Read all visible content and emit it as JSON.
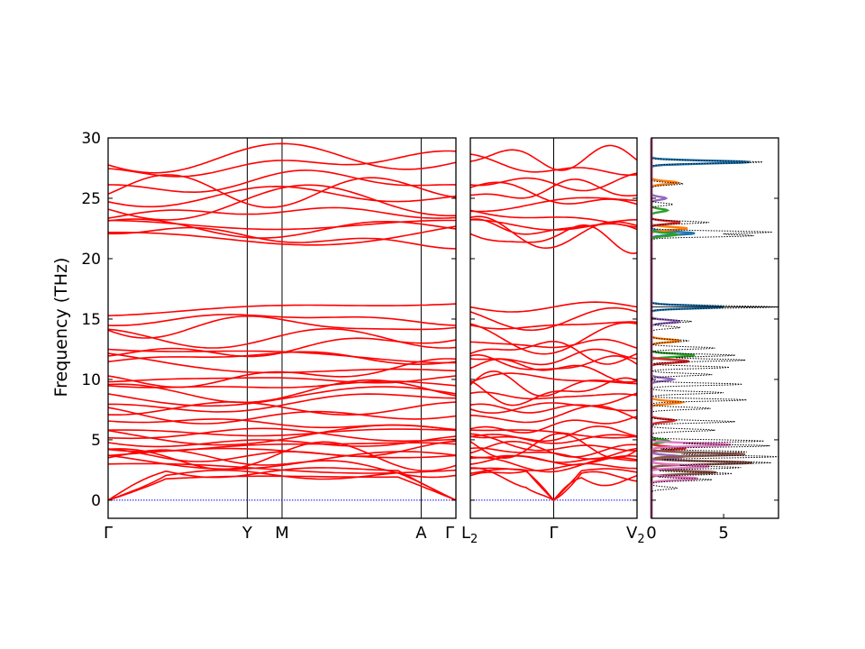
{
  "chart_data": {
    "type": "line",
    "ylabel": "Frequency (THz)",
    "ylim": [
      -1.5,
      30
    ],
    "yticks": [
      0,
      5,
      10,
      15,
      20,
      25,
      30
    ],
    "colors": {
      "bands": "#ff0000",
      "zero_line": "#0000ff",
      "total_dos": "#000000"
    },
    "panels": [
      {
        "id": "path1",
        "xticks": [
          {
            "label": "Γ",
            "pos": 0.0
          },
          {
            "label": "Y",
            "pos": 0.4
          },
          {
            "label": "M",
            "pos": 0.5
          },
          {
            "label": "A",
            "pos": 0.9
          },
          {
            "label": "Γ",
            "pos": 1.0
          }
        ]
      },
      {
        "id": "path2",
        "xticks": [
          {
            "label": "L",
            "sub": "2",
            "pos": 0.0
          },
          {
            "label": "Γ",
            "pos": 0.5
          },
          {
            "label": "V",
            "sub": "2",
            "pos": 1.0
          }
        ]
      }
    ],
    "band_reference_levels_thz": [
      0.0,
      1.8,
      2.1,
      2.4,
      2.7,
      3.0,
      3.3,
      3.6,
      3.9,
      4.2,
      4.5,
      4.8,
      5.1,
      5.4,
      5.8,
      6.3,
      7.0,
      7.6,
      8.2,
      8.6,
      9.0,
      9.5,
      10.0,
      10.6,
      11.2,
      11.8,
      12.3,
      12.9,
      13.4,
      14.5,
      15.0,
      16.0,
      21.8,
      22.2,
      22.5,
      22.8,
      23.5,
      24.6,
      25.2,
      25.6,
      26.3,
      27.8,
      28.3
    ],
    "dos_panel": {
      "xticks": [
        0,
        5
      ],
      "xlim": [
        0,
        8.8
      ],
      "projection_colors": [
        "#1f77b4",
        "#ff7f0e",
        "#2ca02c",
        "#d62728",
        "#9467bd",
        "#8c564b",
        "#e377c2"
      ],
      "total_peaks": [
        {
          "f": 28.0,
          "d": 7.7
        },
        {
          "f": 26.2,
          "d": 2.2
        },
        {
          "f": 24.5,
          "d": 1.5
        },
        {
          "f": 23.0,
          "d": 4.0
        },
        {
          "f": 22.2,
          "d": 8.3
        },
        {
          "f": 21.9,
          "d": 7.0
        },
        {
          "f": 16.0,
          "d": 8.8
        },
        {
          "f": 14.8,
          "d": 2.8
        },
        {
          "f": 14.3,
          "d": 2.0
        },
        {
          "f": 13.2,
          "d": 2.6
        },
        {
          "f": 12.6,
          "d": 4.4
        },
        {
          "f": 12.0,
          "d": 5.8
        },
        {
          "f": 11.6,
          "d": 6.5
        },
        {
          "f": 11.0,
          "d": 5.4
        },
        {
          "f": 10.4,
          "d": 4.2
        },
        {
          "f": 9.6,
          "d": 6.3
        },
        {
          "f": 8.9,
          "d": 5.0
        },
        {
          "f": 8.3,
          "d": 6.6
        },
        {
          "f": 7.6,
          "d": 4.1
        },
        {
          "f": 6.5,
          "d": 5.8
        },
        {
          "f": 5.8,
          "d": 4.4
        },
        {
          "f": 4.9,
          "d": 7.8
        },
        {
          "f": 4.5,
          "d": 8.2
        },
        {
          "f": 4.0,
          "d": 6.6
        },
        {
          "f": 3.6,
          "d": 8.8
        },
        {
          "f": 3.1,
          "d": 8.3
        },
        {
          "f": 2.7,
          "d": 6.2
        },
        {
          "f": 2.2,
          "d": 5.6
        },
        {
          "f": 1.7,
          "d": 4.2
        },
        {
          "f": 1.0,
          "d": 1.8
        }
      ],
      "projections": [
        [
          {
            "f": 28.0,
            "d": 6.8
          },
          {
            "f": 22.1,
            "d": 3.0
          },
          {
            "f": 16.0,
            "d": 5.0
          }
        ],
        [
          {
            "f": 26.3,
            "d": 1.8
          },
          {
            "f": 22.5,
            "d": 2.5
          },
          {
            "f": 13.2,
            "d": 2.0
          },
          {
            "f": 8.1,
            "d": 2.1
          }
        ],
        [
          {
            "f": 24.0,
            "d": 1.1
          },
          {
            "f": 22.0,
            "d": 1.8
          },
          {
            "f": 12.0,
            "d": 3.0
          },
          {
            "f": 4.9,
            "d": 1.2
          }
        ],
        [
          {
            "f": 23.0,
            "d": 2.0
          },
          {
            "f": 11.5,
            "d": 2.6
          },
          {
            "f": 6.6,
            "d": 1.6
          },
          {
            "f": 4.3,
            "d": 2.4
          }
        ],
        [
          {
            "f": 25.0,
            "d": 1.0
          },
          {
            "f": 14.8,
            "d": 2.0
          },
          {
            "f": 10.0,
            "d": 1.5
          },
          {
            "f": 3.6,
            "d": 2.2
          }
        ],
        [
          {
            "f": 3.8,
            "d": 6.5
          },
          {
            "f": 3.1,
            "d": 7.0
          },
          {
            "f": 2.3,
            "d": 4.5
          }
        ],
        [
          {
            "f": 4.6,
            "d": 5.5
          },
          {
            "f": 2.8,
            "d": 4.0
          },
          {
            "f": 1.8,
            "d": 3.2
          }
        ]
      ]
    }
  }
}
